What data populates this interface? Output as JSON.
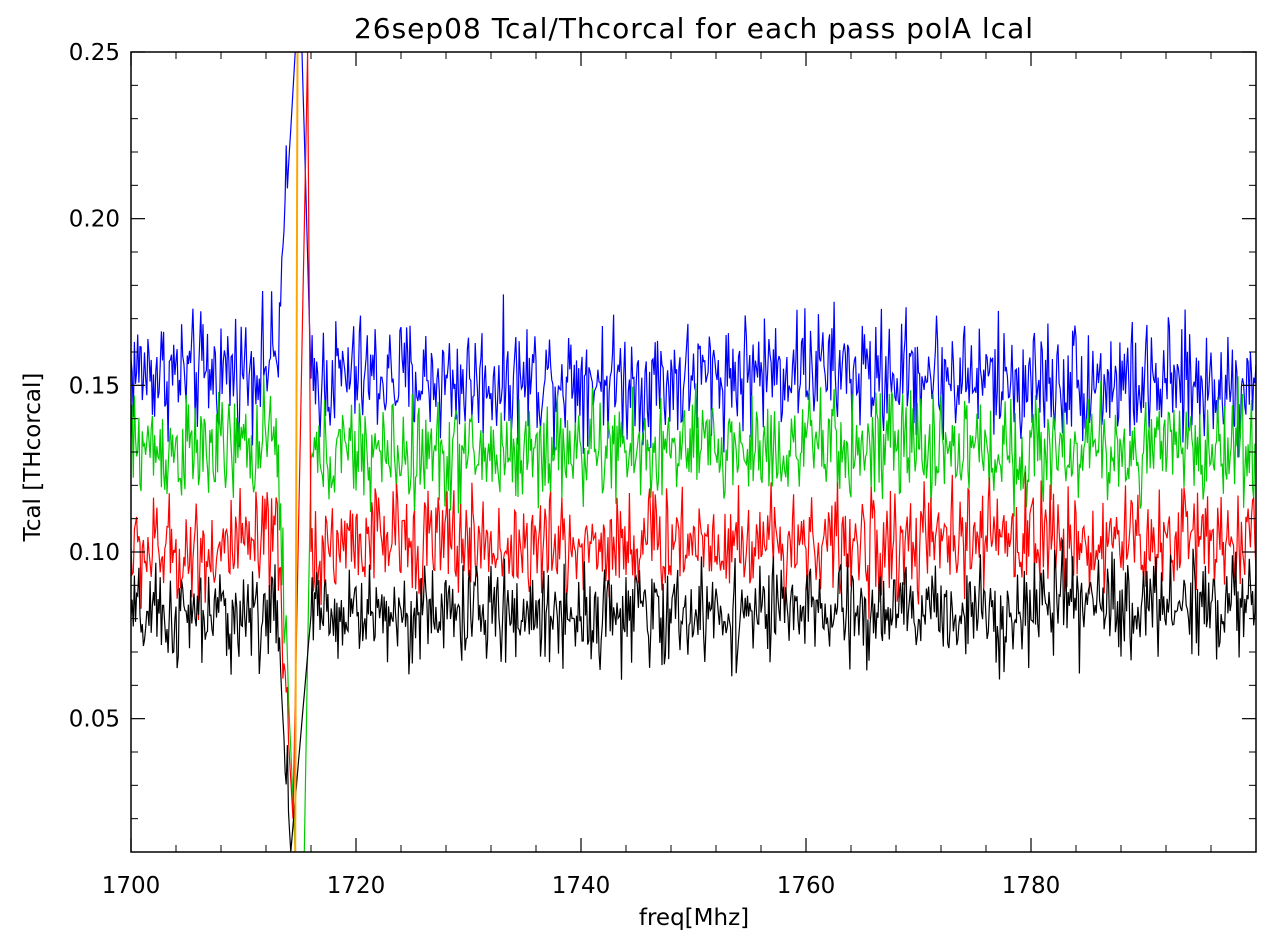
{
  "chart_data": {
    "type": "line",
    "title": "26sep08 Tcal/Thcorcal for each pass  polA lcal",
    "xlabel": "freq[Mhz]",
    "ylabel": "Tcal [THcorcal]",
    "xlim": [
      1700,
      1800
    ],
    "ylim": [
      0.01,
      0.25
    ],
    "xticks": [
      1700,
      1720,
      1740,
      1760,
      1780
    ],
    "xtick_labels": [
      "1700",
      "1720",
      "1740",
      "1760",
      "1780"
    ],
    "yticks": [
      0.05,
      0.1,
      0.15,
      0.2,
      0.25
    ],
    "ytick_labels": [
      "0.05",
      "0.10",
      "0.15",
      "0.20",
      "0.25"
    ],
    "grid": false,
    "legend": "none",
    "series": [
      {
        "color": "#0000ff",
        "x": [
          1700,
          1705,
          1710,
          1713,
          1714.6,
          1715.2,
          1716,
          1720,
          1725,
          1730,
          1735,
          1740,
          1745,
          1750,
          1755,
          1760,
          1765,
          1770,
          1775,
          1780,
          1785,
          1790,
          1795,
          1800
        ],
        "y": [
          0.155,
          0.153,
          0.155,
          0.158,
          0.25,
          0.25,
          0.152,
          0.153,
          0.152,
          0.151,
          0.152,
          0.153,
          0.151,
          0.152,
          0.154,
          0.156,
          0.153,
          0.154,
          0.152,
          0.151,
          0.152,
          0.15,
          0.15,
          0.15
        ],
        "noise": 0.011
      },
      {
        "color": "#00cc00",
        "x": [
          1700,
          1705,
          1710,
          1713,
          1714.6,
          1715.4,
          1716,
          1720,
          1725,
          1730,
          1735,
          1740,
          1745,
          1750,
          1755,
          1760,
          1765,
          1770,
          1775,
          1780,
          1785,
          1790,
          1795,
          1800
        ],
        "y": [
          0.132,
          0.13,
          0.131,
          0.133,
          0.01,
          0.01,
          0.128,
          0.13,
          0.129,
          0.129,
          0.13,
          0.131,
          0.13,
          0.131,
          0.131,
          0.132,
          0.131,
          0.132,
          0.131,
          0.13,
          0.131,
          0.13,
          0.131,
          0.133
        ],
        "noise": 0.01
      },
      {
        "color": "#ff0000",
        "x": [
          1700,
          1705,
          1710,
          1713,
          1714.4,
          1715.7,
          1716,
          1720,
          1725,
          1730,
          1735,
          1740,
          1745,
          1750,
          1755,
          1760,
          1765,
          1770,
          1775,
          1780,
          1785,
          1790,
          1795,
          1800
        ],
        "y": [
          0.1,
          0.1,
          0.101,
          0.102,
          0.02,
          0.25,
          0.1,
          0.104,
          0.104,
          0.103,
          0.101,
          0.102,
          0.103,
          0.104,
          0.103,
          0.104,
          0.101,
          0.102,
          0.104,
          0.105,
          0.103,
          0.103,
          0.106,
          0.104
        ],
        "noise": 0.01
      },
      {
        "color": "#000000",
        "x": [
          1700,
          1705,
          1710,
          1713,
          1714.2,
          1716,
          1720,
          1725,
          1730,
          1735,
          1740,
          1745,
          1750,
          1755,
          1760,
          1765,
          1770,
          1775,
          1780,
          1785,
          1790,
          1795,
          1800
        ],
        "y": [
          0.08,
          0.08,
          0.081,
          0.082,
          0.01,
          0.081,
          0.082,
          0.081,
          0.082,
          0.081,
          0.082,
          0.081,
          0.081,
          0.082,
          0.082,
          0.081,
          0.082,
          0.082,
          0.083,
          0.084,
          0.084,
          0.085,
          0.084
        ],
        "noise": 0.009
      },
      {
        "color": "#ffa500",
        "x": [
          1714.6,
          1714.8
        ],
        "y": [
          0.01,
          0.25
        ],
        "noise": 0
      }
    ]
  }
}
